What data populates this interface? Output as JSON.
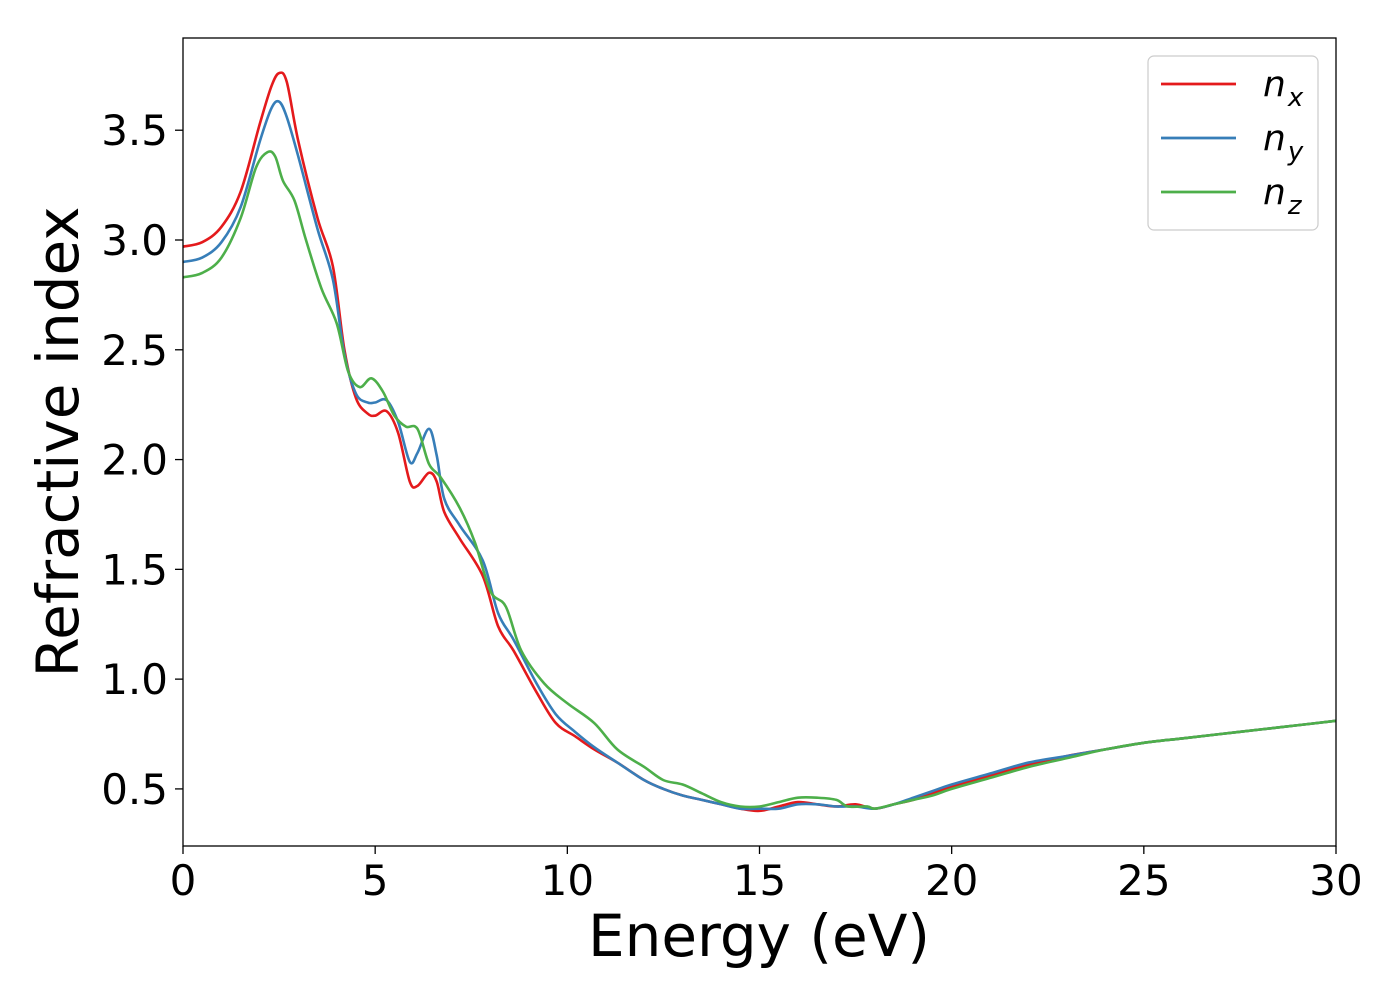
{
  "chart_data": {
    "type": "line",
    "xlabel": "Energy (eV)",
    "ylabel": "Refractive index",
    "xlim": [
      0,
      30
    ],
    "ylim": [
      0.24,
      3.92
    ],
    "xticks": [
      {
        "value": 0,
        "label": "0"
      },
      {
        "value": 5,
        "label": "5"
      },
      {
        "value": 10,
        "label": "10"
      },
      {
        "value": 15,
        "label": "15"
      },
      {
        "value": 20,
        "label": "20"
      },
      {
        "value": 25,
        "label": "25"
      },
      {
        "value": 30,
        "label": "30"
      }
    ],
    "yticks": [
      {
        "value": 0.5,
        "label": "0.5"
      },
      {
        "value": 1.0,
        "label": "1.0"
      },
      {
        "value": 1.5,
        "label": "1.5"
      },
      {
        "value": 2.0,
        "label": "2.0"
      },
      {
        "value": 2.5,
        "label": "2.5"
      },
      {
        "value": 3.0,
        "label": "3.0"
      },
      {
        "value": 3.5,
        "label": "3.5"
      }
    ],
    "grid": false,
    "legend": {
      "position": "top-right",
      "entries": [
        {
          "base": "n",
          "sub": "x",
          "color": "#e41a1c"
        },
        {
          "base": "n",
          "sub": "y",
          "color": "#377eb8"
        },
        {
          "base": "n",
          "sub": "z",
          "color": "#4daf4a"
        }
      ]
    },
    "series": [
      {
        "name": "n_x",
        "color": "#e41a1c",
        "points": [
          [
            0,
            2.97
          ],
          [
            0.5,
            2.99
          ],
          [
            1,
            3.06
          ],
          [
            1.5,
            3.22
          ],
          [
            2,
            3.53
          ],
          [
            2.3,
            3.7
          ],
          [
            2.5,
            3.76
          ],
          [
            2.7,
            3.72
          ],
          [
            3,
            3.45
          ],
          [
            3.5,
            3.1
          ],
          [
            3.9,
            2.88
          ],
          [
            4.2,
            2.5
          ],
          [
            4.5,
            2.28
          ],
          [
            4.8,
            2.21
          ],
          [
            5,
            2.2
          ],
          [
            5.3,
            2.22
          ],
          [
            5.6,
            2.12
          ],
          [
            5.9,
            1.9
          ],
          [
            6.1,
            1.88
          ],
          [
            6.4,
            1.94
          ],
          [
            6.6,
            1.9
          ],
          [
            6.8,
            1.76
          ],
          [
            7.2,
            1.64
          ],
          [
            7.8,
            1.47
          ],
          [
            8.2,
            1.24
          ],
          [
            8.6,
            1.13
          ],
          [
            9.2,
            0.94
          ],
          [
            9.7,
            0.8
          ],
          [
            10.2,
            0.74
          ],
          [
            10.7,
            0.68
          ],
          [
            11.3,
            0.62
          ],
          [
            12,
            0.54
          ],
          [
            12.5,
            0.5
          ],
          [
            13,
            0.47
          ],
          [
            13.5,
            0.45
          ],
          [
            14,
            0.43
          ],
          [
            14.5,
            0.41
          ],
          [
            15,
            0.4
          ],
          [
            15.5,
            0.42
          ],
          [
            16,
            0.44
          ],
          [
            16.5,
            0.43
          ],
          [
            17,
            0.42
          ],
          [
            17.5,
            0.43
          ],
          [
            18,
            0.41
          ],
          [
            18.5,
            0.43
          ],
          [
            19,
            0.45
          ],
          [
            19.5,
            0.48
          ],
          [
            20,
            0.51
          ],
          [
            21,
            0.56
          ],
          [
            22,
            0.61
          ],
          [
            23,
            0.65
          ],
          [
            24,
            0.68
          ],
          [
            25,
            0.71
          ],
          [
            26,
            0.73
          ],
          [
            27,
            0.75
          ],
          [
            28,
            0.77
          ],
          [
            29,
            0.79
          ],
          [
            30,
            0.81
          ]
        ]
      },
      {
        "name": "n_y",
        "color": "#377eb8",
        "points": [
          [
            0,
            2.9
          ],
          [
            0.5,
            2.92
          ],
          [
            1,
            2.99
          ],
          [
            1.5,
            3.15
          ],
          [
            2,
            3.45
          ],
          [
            2.3,
            3.6
          ],
          [
            2.5,
            3.63
          ],
          [
            2.7,
            3.56
          ],
          [
            3,
            3.38
          ],
          [
            3.5,
            3.05
          ],
          [
            3.9,
            2.82
          ],
          [
            4.2,
            2.48
          ],
          [
            4.5,
            2.3
          ],
          [
            4.8,
            2.26
          ],
          [
            5,
            2.26
          ],
          [
            5.3,
            2.27
          ],
          [
            5.6,
            2.17
          ],
          [
            5.9,
            1.99
          ],
          [
            6.1,
            2.03
          ],
          [
            6.4,
            2.14
          ],
          [
            6.6,
            2.02
          ],
          [
            6.8,
            1.82
          ],
          [
            7.2,
            1.7
          ],
          [
            7.8,
            1.54
          ],
          [
            8.2,
            1.3
          ],
          [
            8.6,
            1.18
          ],
          [
            9.2,
            0.98
          ],
          [
            9.7,
            0.84
          ],
          [
            10.2,
            0.76
          ],
          [
            10.7,
            0.69
          ],
          [
            11.3,
            0.62
          ],
          [
            12,
            0.54
          ],
          [
            12.5,
            0.5
          ],
          [
            13,
            0.47
          ],
          [
            13.5,
            0.45
          ],
          [
            14,
            0.43
          ],
          [
            14.5,
            0.41
          ],
          [
            15,
            0.41
          ],
          [
            15.5,
            0.41
          ],
          [
            16,
            0.43
          ],
          [
            16.5,
            0.43
          ],
          [
            17,
            0.42
          ],
          [
            17.5,
            0.42
          ],
          [
            18,
            0.41
          ],
          [
            18.5,
            0.43
          ],
          [
            19,
            0.46
          ],
          [
            19.5,
            0.49
          ],
          [
            20,
            0.52
          ],
          [
            21,
            0.57
          ],
          [
            22,
            0.62
          ],
          [
            23,
            0.65
          ],
          [
            24,
            0.68
          ],
          [
            25,
            0.71
          ],
          [
            26,
            0.73
          ],
          [
            27,
            0.75
          ],
          [
            28,
            0.77
          ],
          [
            29,
            0.79
          ],
          [
            30,
            0.81
          ]
        ]
      },
      {
        "name": "n_z",
        "color": "#4daf4a",
        "points": [
          [
            0,
            2.83
          ],
          [
            0.5,
            2.85
          ],
          [
            1,
            2.92
          ],
          [
            1.5,
            3.1
          ],
          [
            1.9,
            3.33
          ],
          [
            2.2,
            3.4
          ],
          [
            2.4,
            3.38
          ],
          [
            2.6,
            3.27
          ],
          [
            2.9,
            3.18
          ],
          [
            3.2,
            3.0
          ],
          [
            3.6,
            2.78
          ],
          [
            4.0,
            2.62
          ],
          [
            4.3,
            2.4
          ],
          [
            4.6,
            2.33
          ],
          [
            4.9,
            2.37
          ],
          [
            5.2,
            2.31
          ],
          [
            5.5,
            2.2
          ],
          [
            5.8,
            2.15
          ],
          [
            6.1,
            2.14
          ],
          [
            6.4,
            1.98
          ],
          [
            6.7,
            1.92
          ],
          [
            7.2,
            1.78
          ],
          [
            7.6,
            1.62
          ],
          [
            8.0,
            1.4
          ],
          [
            8.4,
            1.33
          ],
          [
            8.8,
            1.13
          ],
          [
            9.4,
            0.98
          ],
          [
            10,
            0.89
          ],
          [
            10.7,
            0.8
          ],
          [
            11.3,
            0.68
          ],
          [
            12,
            0.6
          ],
          [
            12.5,
            0.54
          ],
          [
            13,
            0.52
          ],
          [
            13.5,
            0.48
          ],
          [
            14,
            0.44
          ],
          [
            14.5,
            0.42
          ],
          [
            15,
            0.42
          ],
          [
            15.5,
            0.44
          ],
          [
            16,
            0.46
          ],
          [
            16.5,
            0.46
          ],
          [
            17,
            0.45
          ],
          [
            17.3,
            0.42
          ],
          [
            17.8,
            0.42
          ],
          [
            18,
            0.41
          ],
          [
            18.5,
            0.43
          ],
          [
            19,
            0.45
          ],
          [
            19.5,
            0.47
          ],
          [
            20,
            0.5
          ],
          [
            21,
            0.55
          ],
          [
            22,
            0.6
          ],
          [
            23,
            0.64
          ],
          [
            24,
            0.68
          ],
          [
            25,
            0.71
          ],
          [
            26,
            0.73
          ],
          [
            27,
            0.75
          ],
          [
            28,
            0.77
          ],
          [
            29,
            0.79
          ],
          [
            30,
            0.81
          ]
        ]
      }
    ]
  }
}
